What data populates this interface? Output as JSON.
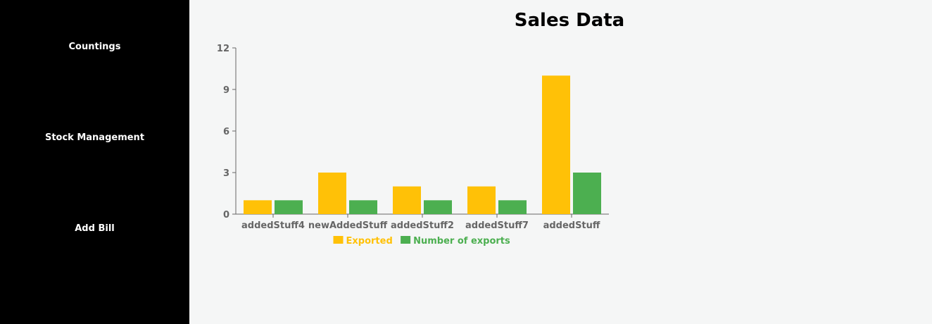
{
  "sidebar": {
    "items": [
      {
        "label": "Countings"
      },
      {
        "label": "Stock Management"
      },
      {
        "label": "Add Bill"
      }
    ]
  },
  "chart_data": {
    "type": "bar",
    "title": "Sales Data",
    "categories": [
      "addedStuff4",
      "newAddedStuff",
      "addedStuff2",
      "addedStuff7",
      "addedStuff"
    ],
    "series": [
      {
        "name": "Exported",
        "color": "#FFC107",
        "values": [
          1,
          3,
          2,
          2,
          10
        ]
      },
      {
        "name": "Number of exports",
        "color": "#4CAF50",
        "values": [
          1,
          1,
          1,
          1,
          3
        ]
      }
    ],
    "yticks": [
      0,
      3,
      6,
      9,
      12
    ],
    "ylim": [
      0,
      12
    ],
    "grid": false,
    "legend_position": "bottom-center"
  }
}
